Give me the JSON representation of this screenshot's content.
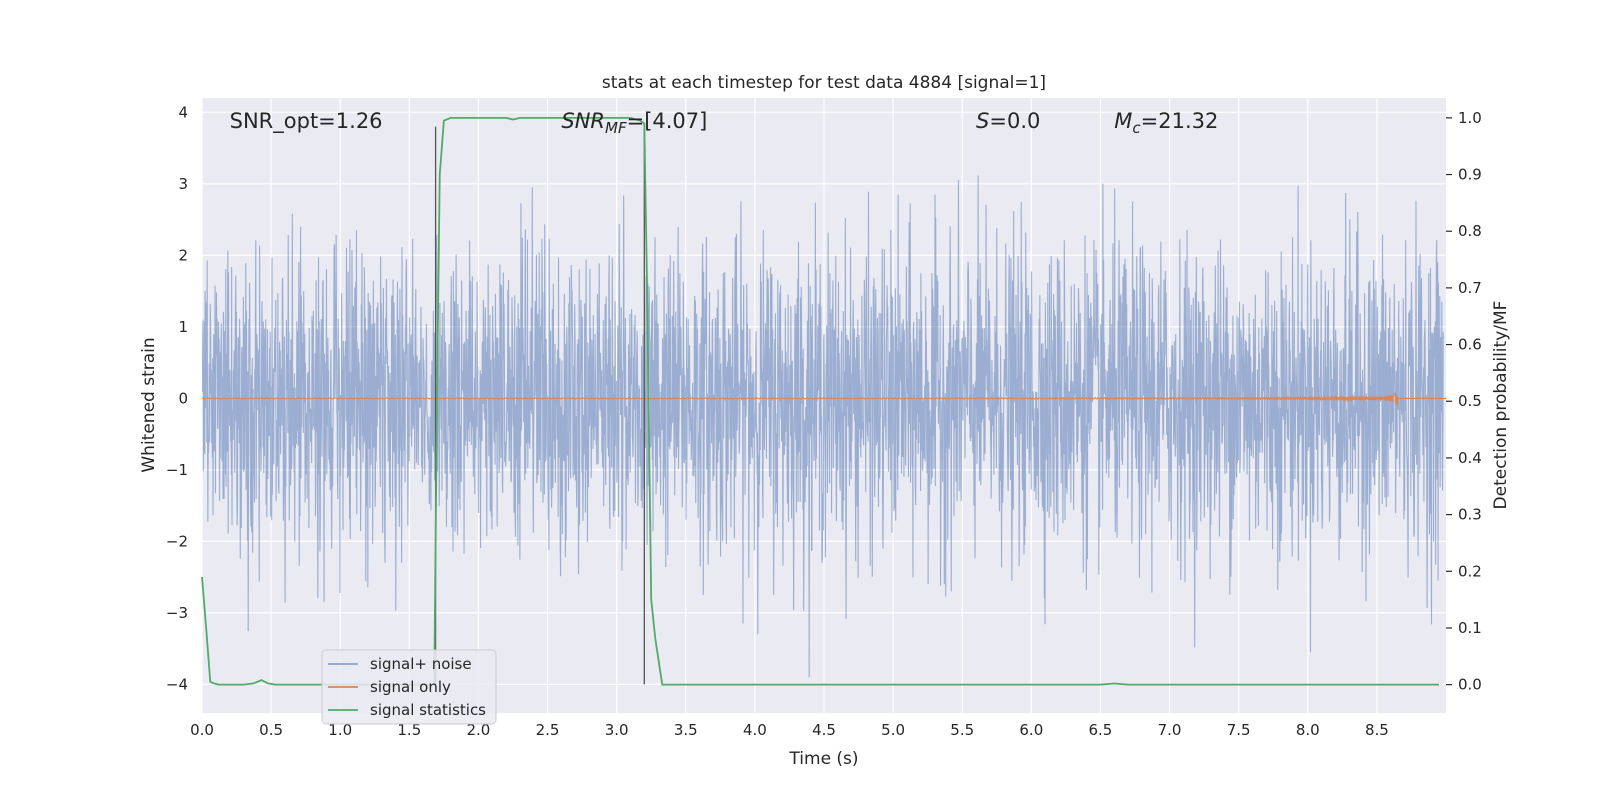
{
  "chart_data": {
    "type": "line",
    "title": "stats at each timestep for test data 4884 [signal=1]",
    "xlabel": "Time (s)",
    "ylabel_left": "Whitened strain",
    "ylabel_right": "Detection probability/MF",
    "xlim": [
      0.0,
      9.0
    ],
    "ylim_left": [
      -4.4,
      4.2
    ],
    "ylim_right": [
      -0.05,
      1.035
    ],
    "x_ticks": [
      0.0,
      0.5,
      1.0,
      1.5,
      2.0,
      2.5,
      3.0,
      3.5,
      4.0,
      4.5,
      5.0,
      5.5,
      6.0,
      6.5,
      7.0,
      7.5,
      8.0,
      8.5
    ],
    "x_tick_labels": [
      "0.0",
      "0.5",
      "1.0",
      "1.5",
      "2.0",
      "2.5",
      "3.0",
      "3.5",
      "4.0",
      "4.5",
      "5.0",
      "5.5",
      "6.0",
      "6.5",
      "7.0",
      "7.5",
      "8.0",
      "8.5"
    ],
    "y_left_ticks": [
      -4,
      -3,
      -2,
      -1,
      0,
      1,
      2,
      3,
      4
    ],
    "y_left_tick_labels": [
      "−4",
      "−3",
      "−2",
      "−1",
      "0",
      "1",
      "2",
      "3",
      "4"
    ],
    "y_right_ticks": [
      0.0,
      0.1,
      0.2,
      0.3,
      0.4,
      0.5,
      0.6,
      0.7,
      0.8,
      0.9,
      1.0
    ],
    "y_right_tick_labels": [
      "0.0",
      "0.1",
      "0.2",
      "0.3",
      "0.4",
      "0.5",
      "0.6",
      "0.7",
      "0.8",
      "0.9",
      "1.0"
    ],
    "grid": true,
    "legend_position": "lower-left",
    "annotations": [
      {
        "label": "SNR_opt=1.26",
        "x": 0.2,
        "y": 3.85
      },
      {
        "label": "SNR_MF=[4.07]",
        "x": 2.6,
        "y": 3.85
      },
      {
        "label": "S=0.0",
        "x": 5.6,
        "y": 3.85
      },
      {
        "label": "M_c=21.32",
        "x": 6.6,
        "y": 3.85
      }
    ],
    "vlines": [
      {
        "x": 1.69,
        "y_range": [
          -4.0,
          3.8
        ]
      },
      {
        "x": 3.2,
        "y_range": [
          -4.0,
          3.8
        ]
      }
    ],
    "series": [
      {
        "name": "signal+ noise",
        "axis": "left",
        "color": "#4c72b0",
        "style": "dense noise",
        "envelope_max": 3.8,
        "envelope_min": -3.9
      },
      {
        "name": "signal only",
        "axis": "left",
        "color": "#dd8452",
        "style": "chirp",
        "end_time": 8.65,
        "peak_amplitude": 0.28
      },
      {
        "name": "signal statistics",
        "axis": "right",
        "color": "#55a868",
        "x": [
          0.0,
          0.03,
          0.06,
          0.09,
          0.12,
          0.2,
          0.3,
          0.37,
          0.43,
          0.48,
          0.53,
          0.6,
          1.0,
          1.5,
          1.68,
          1.7,
          1.72,
          1.75,
          1.8,
          2.0,
          2.2,
          2.25,
          2.3,
          2.5,
          3.0,
          3.1,
          3.17,
          3.2,
          3.22,
          3.25,
          3.28,
          3.33,
          3.4,
          4.0,
          5.0,
          6.0,
          6.5,
          6.6,
          6.7,
          7.0,
          8.0,
          8.95
        ],
        "y": [
          0.19,
          0.1,
          0.005,
          0.002,
          0.0,
          0.0,
          0.0,
          0.002,
          0.008,
          0.002,
          0.0,
          0.0,
          0.0,
          0.0,
          0.0,
          0.5,
          0.9,
          0.995,
          1.0,
          1.0,
          1.0,
          0.997,
          1.0,
          1.0,
          1.0,
          1.0,
          0.995,
          0.99,
          0.7,
          0.15,
          0.08,
          0.0,
          0.0,
          0.0,
          0.0,
          0.0,
          0.0,
          0.002,
          0.0,
          0.0,
          0.0,
          0.0
        ]
      }
    ]
  }
}
